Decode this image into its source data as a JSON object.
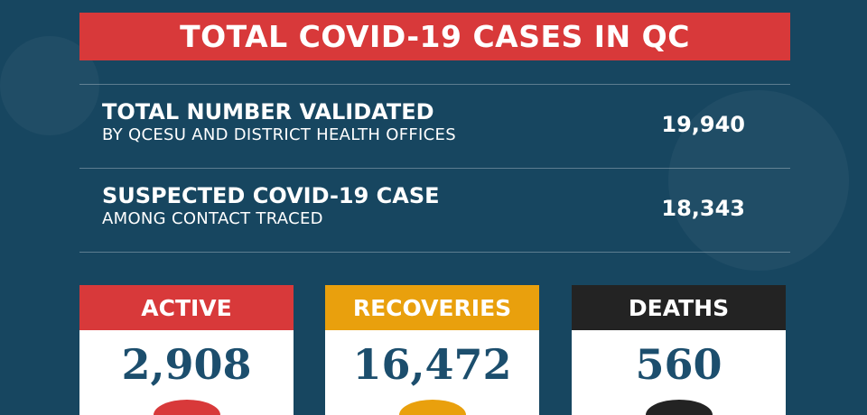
{
  "title": "TOTAL COVID-19 CASES IN QC",
  "rows": [
    {
      "main": "TOTAL NUMBER VALIDATED",
      "sub": "BY QCESU AND DISTRICT HEALTH OFFICES",
      "value": "19,940"
    },
    {
      "main": "SUSPECTED COVID-19 CASE",
      "sub": "AMONG CONTACT TRACED",
      "value": "18,343"
    }
  ],
  "cards": [
    {
      "label": "ACTIVE",
      "value": "2,908",
      "color": "#d8393a"
    },
    {
      "label": "RECOVERIES",
      "value": "16,472",
      "color": "#e9a00d"
    },
    {
      "label": "DEATHS",
      "value": "560",
      "color": "#232323"
    }
  ]
}
